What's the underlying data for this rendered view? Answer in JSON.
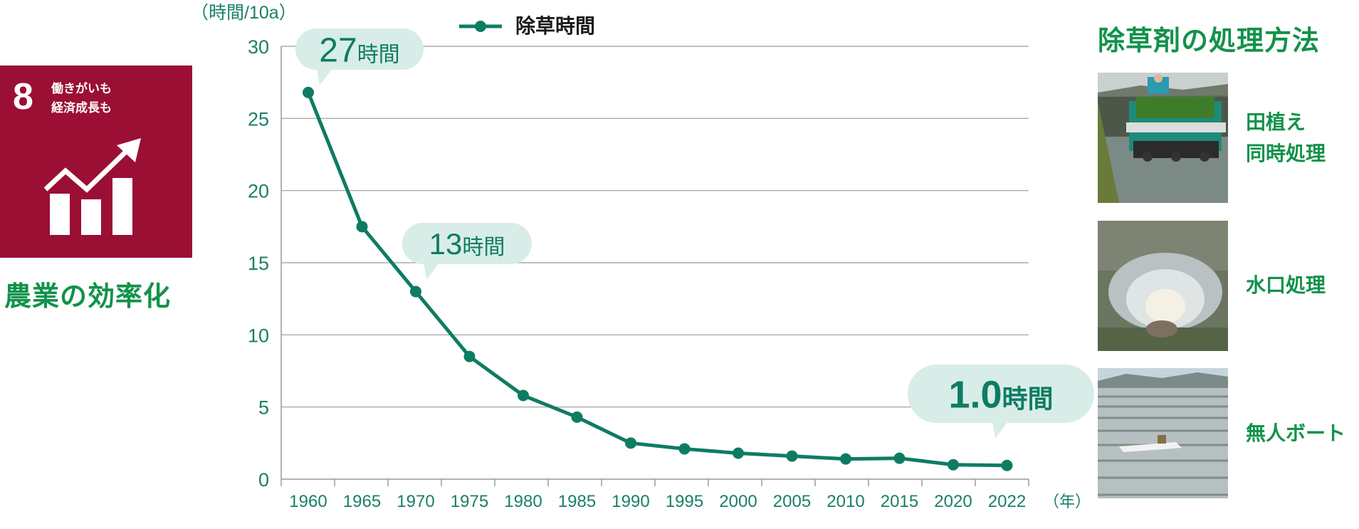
{
  "sdg": {
    "number": "8",
    "text_line1": "働きがいも",
    "text_line2": "経済成長も",
    "caption": "農業の効率化",
    "icon": "growth-chart-arrow-icon",
    "color": "#9b0f34"
  },
  "chart_data": {
    "type": "line",
    "ylabel": "（時間/10a）",
    "xlabel": "（年）",
    "ylim": [
      0,
      30
    ],
    "yticks": [
      "0",
      "5",
      "10",
      "15",
      "20",
      "25",
      "30"
    ],
    "categories": [
      "1960",
      "1965",
      "1970",
      "1975",
      "1980",
      "1985",
      "1990",
      "1995",
      "2000",
      "2005",
      "2010",
      "2015",
      "2020",
      "2022"
    ],
    "series": [
      {
        "name": "除草時間",
        "values": [
          26.8,
          17.5,
          13.0,
          8.5,
          5.8,
          4.3,
          2.5,
          2.1,
          1.8,
          1.6,
          1.4,
          1.45,
          1.0,
          0.95
        ],
        "color": "#0e7c63"
      }
    ],
    "grid": "horizontal",
    "legend": "top-center",
    "annotations": [
      {
        "value": "27",
        "unit": "時間",
        "index": 0
      },
      {
        "value": "13",
        "unit": "時間",
        "index": 2
      },
      {
        "value": "1.0",
        "unit": "時間",
        "index": 13
      }
    ]
  },
  "methods": {
    "title": "除草剤の処理方法",
    "items": [
      {
        "label_line1": "田植え",
        "label_line2": "同時処理",
        "photo": "rice-transplanter-photo"
      },
      {
        "label_line1": "水口処理",
        "label_line2": "",
        "photo": "water-inlet-photo"
      },
      {
        "label_line1": "無人ボート",
        "label_line2": "",
        "photo": "unmanned-boat-photo"
      }
    ]
  },
  "colors": {
    "line": "#0e7c63",
    "axis_text": "#1a7f66",
    "callout": "#d8ede7",
    "green_title": "#12924a",
    "grid": "#9a9a9a"
  }
}
